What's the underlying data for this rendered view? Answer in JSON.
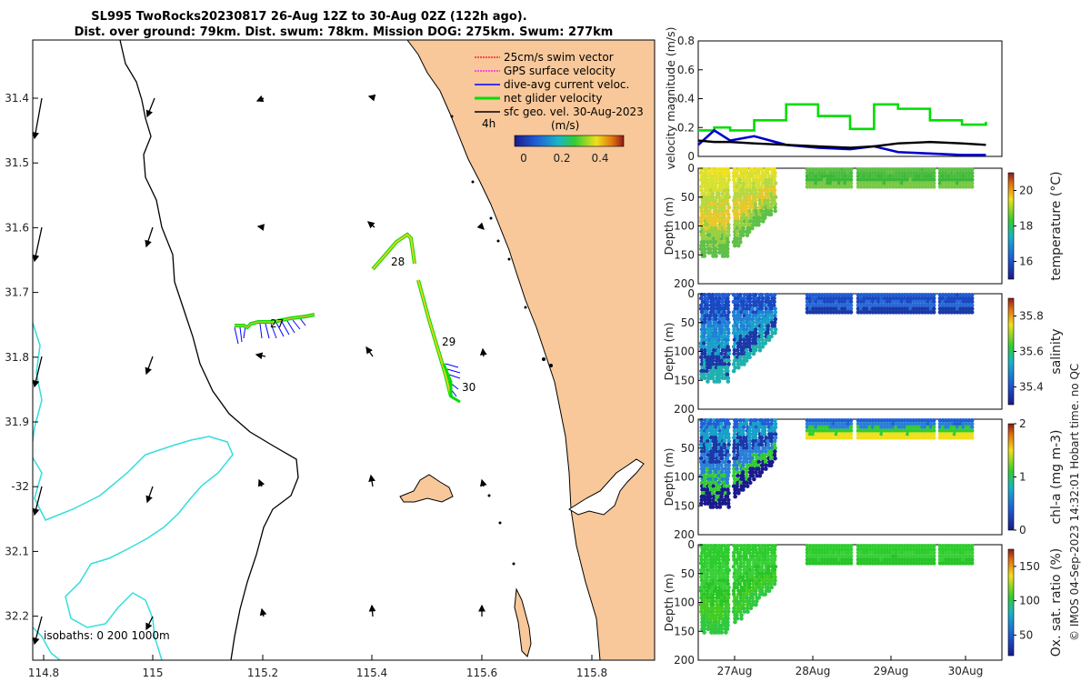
{
  "title": {
    "line1": "SL995 TwoRocks20230817 26-Aug 12Z to 30-Aug 02Z (122h ago).",
    "line2": "Dist. over ground: 79km. Dist. swum: 78km. Mission DOG: 275km. Swum: 277km"
  },
  "map": {
    "lon_ticks": [
      "114.8",
      "115",
      "115.2",
      "115.4",
      "115.6",
      "115.8"
    ],
    "lat_ticks": [
      "31.4",
      "31.5",
      "31.6",
      "31.7",
      "31.8",
      "31.9",
      "-32",
      "32.1",
      "32.2"
    ],
    "legend": [
      {
        "label": "25cm/s swim vector",
        "color": "#ff0000"
      },
      {
        "label": "GPS surface velocity",
        "color": "#ff00ff"
      },
      {
        "label": "dive-avg current veloc.",
        "color": "#0000ff"
      },
      {
        "label": "net glider velocity",
        "color": "#00dd00"
      },
      {
        "label": "sfc geo. vel. 30-Aug-2023",
        "color": "#000000"
      }
    ],
    "legend_time": "4h",
    "colorbar_label": "(m/s)",
    "colorbar_ticks": [
      "0",
      "0.2",
      "0.4"
    ],
    "day_labels": [
      "27",
      "28",
      "29",
      "30"
    ],
    "isobaths_label": "isobaths: 0   200  1000m",
    "land_color": "#f8c89a",
    "isobath_color": "#33dddd"
  },
  "chart_data": [
    {
      "type": "line",
      "title": "",
      "ylabel": "velocity magnitude (m/s)",
      "ylim": [
        0,
        0.8
      ],
      "yticks": [
        "0",
        "0.2",
        "0.4",
        "0.6",
        "0.8"
      ],
      "x_days": [
        26.5,
        26.7,
        26.9,
        27.2,
        27.6,
        28.0,
        28.4,
        28.7,
        29.0,
        29.4,
        29.8,
        30.1
      ],
      "series": [
        {
          "name": "net glider velocity",
          "color": "#00dd00",
          "values": [
            0.18,
            0.2,
            0.18,
            0.25,
            0.36,
            0.28,
            0.19,
            0.36,
            0.33,
            0.25,
            0.22,
            0.24
          ]
        },
        {
          "name": "dive-avg current veloc.",
          "color": "#0000cc",
          "values": [
            0.08,
            0.18,
            0.11,
            0.14,
            0.08,
            0.06,
            0.05,
            0.07,
            0.03,
            0.02,
            0.01,
            0.01
          ]
        },
        {
          "name": "sfc geo. vel.",
          "color": "#000000",
          "values": [
            0.11,
            0.1,
            0.1,
            0.09,
            0.08,
            0.07,
            0.06,
            0.07,
            0.09,
            0.1,
            0.09,
            0.08
          ]
        }
      ]
    },
    {
      "type": "scatter",
      "ylabel": "Depth (m)",
      "yticks": [
        "0",
        "50",
        "100",
        "150",
        "200"
      ],
      "colorbar_label": "temperature (°C)",
      "colorbar_ticks": [
        "16",
        "18",
        "20"
      ],
      "clim": [
        15,
        21
      ]
    },
    {
      "type": "scatter",
      "ylabel": "Depth (m)",
      "yticks": [
        "0",
        "50",
        "100",
        "150",
        "200"
      ],
      "colorbar_label": "salinity",
      "colorbar_ticks": [
        "35.4",
        "35.6",
        "35.8"
      ],
      "clim": [
        35.3,
        35.9
      ]
    },
    {
      "type": "scatter",
      "ylabel": "Depth (m)",
      "yticks": [
        "0",
        "50",
        "100",
        "150",
        "200"
      ],
      "colorbar_label": "chl-a (mg m-3)",
      "colorbar_ticks": [
        "0",
        "1",
        "2"
      ],
      "clim": [
        0,
        2
      ]
    },
    {
      "type": "scatter",
      "ylabel": "Depth (m)",
      "yticks": [
        "0",
        "50",
        "100",
        "150",
        "200"
      ],
      "colorbar_label": "Ox. sat. ratio (%)",
      "colorbar_ticks": [
        "50",
        "100",
        "150"
      ],
      "clim": [
        20,
        175
      ]
    }
  ],
  "time_ticks": [
    "27Aug",
    "28Aug",
    "29Aug",
    "30Aug"
  ],
  "credit": "© IMOS 04-Sep-2023 14:32:01 Hobart time. no QC"
}
